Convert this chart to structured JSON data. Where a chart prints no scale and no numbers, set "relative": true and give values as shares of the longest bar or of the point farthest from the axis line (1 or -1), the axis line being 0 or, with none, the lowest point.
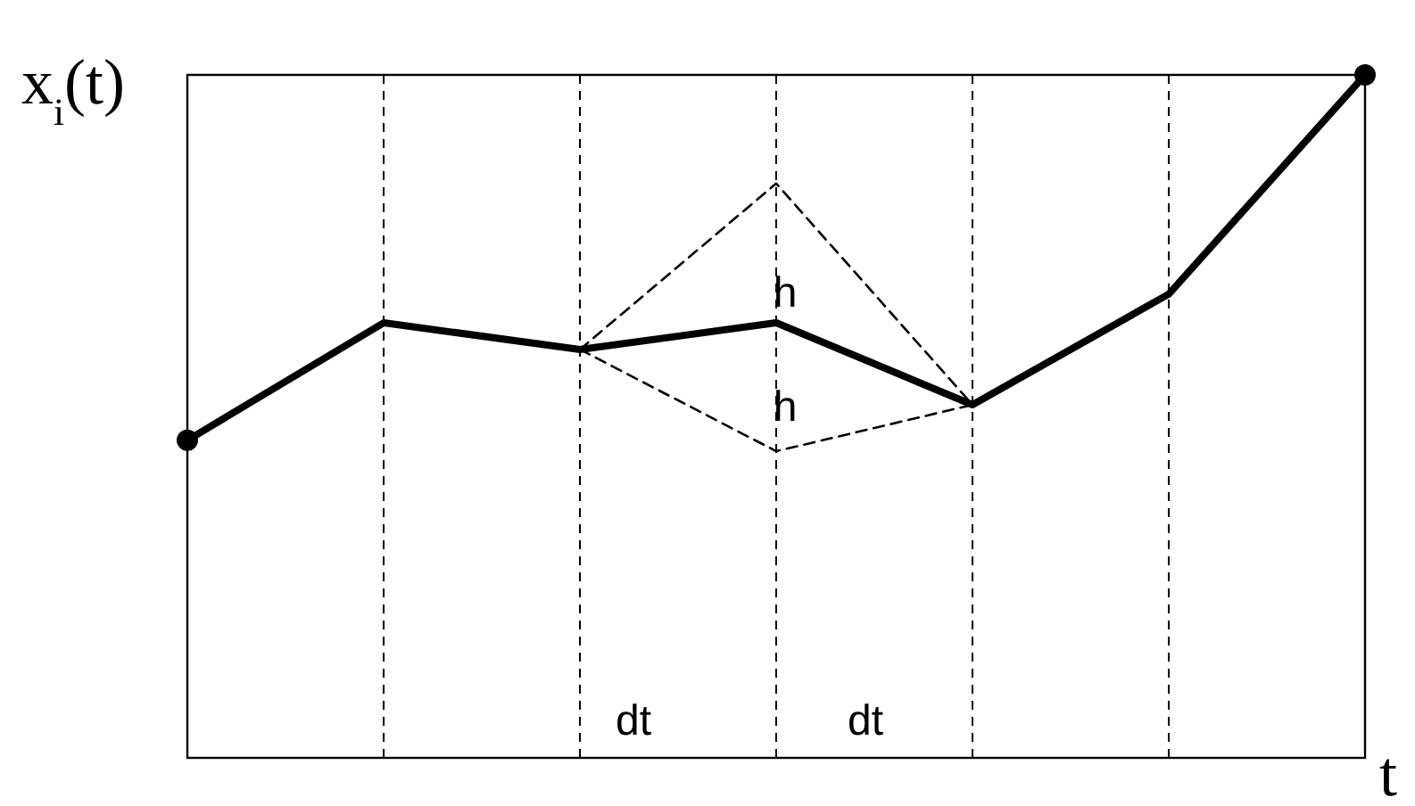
{
  "chart_data": {
    "type": "line",
    "relative": true,
    "ylabel": "x$_{i}$(t)",
    "xlabel": "t",
    "categories": [
      null,
      null,
      null,
      null,
      null,
      null,
      null
    ],
    "grid": "x",
    "series": [
      {
        "color": "#000000",
        "line_style": "solid",
        "values": [
          0.465,
          0.637,
          0.598,
          0.637,
          0.517,
          0.679,
          1
        ]
      },
      {
        "color": "#000000",
        "line_style": "dashed",
        "values": [
          null,
          null,
          0.598,
          0.841,
          0.517,
          null,
          null
        ]
      },
      {
        "color": "#000000",
        "line_style": "dashed",
        "values": [
          null,
          null,
          0.598,
          0.449,
          0.517,
          null,
          null
        ]
      }
    ],
    "annotations": [
      "h",
      "h",
      "dt",
      "dt"
    ]
  }
}
